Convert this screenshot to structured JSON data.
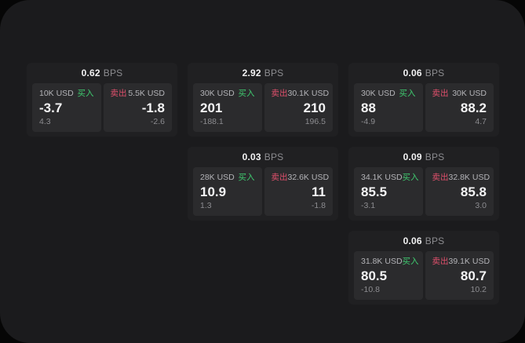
{
  "labels": {
    "bps": "BPS",
    "buy": "买入",
    "sell": "卖出"
  },
  "colors": {
    "background": "#060606",
    "panel": "#1b1b1d",
    "card": "#202022",
    "tile": "#2b2b2d",
    "buy_green": "#3fca6f",
    "sell_red": "#e0506c",
    "text_primary": "#f4f4f5",
    "text_secondary": "#b4b4b8",
    "text_dim": "#8c8c90"
  },
  "cards": [
    {
      "bps": "0.62",
      "buy": {
        "amount": "10K USD",
        "price": "-3.7",
        "change": "4.3"
      },
      "sell": {
        "amount": "5.5K USD",
        "price": "-1.8",
        "change": "-2.6"
      }
    },
    {
      "bps": "2.92",
      "buy": {
        "amount": "30K USD",
        "price": "201",
        "change": "-188.1"
      },
      "sell": {
        "amount": "30.1K USD",
        "price": "210",
        "change": "196.5"
      }
    },
    {
      "bps": "0.06",
      "buy": {
        "amount": "30K USD",
        "price": "88",
        "change": "-4.9"
      },
      "sell": {
        "amount": "30K USD",
        "price": "88.2",
        "change": "4.7"
      }
    },
    {
      "bps": "0.03",
      "buy": {
        "amount": "28K USD",
        "price": "10.9",
        "change": "1.3"
      },
      "sell": {
        "amount": "32.6K USD",
        "price": "11",
        "change": "-1.8"
      }
    },
    {
      "bps": "0.09",
      "buy": {
        "amount": "34.1K USD",
        "price": "85.5",
        "change": "-3.1"
      },
      "sell": {
        "amount": "32.8K USD",
        "price": "85.8",
        "change": "3.0"
      }
    },
    {
      "bps": "0.06",
      "buy": {
        "amount": "31.8K USD",
        "price": "80.5",
        "change": "-10.8"
      },
      "sell": {
        "amount": "39.1K USD",
        "price": "80.7",
        "change": "10.2"
      }
    }
  ]
}
